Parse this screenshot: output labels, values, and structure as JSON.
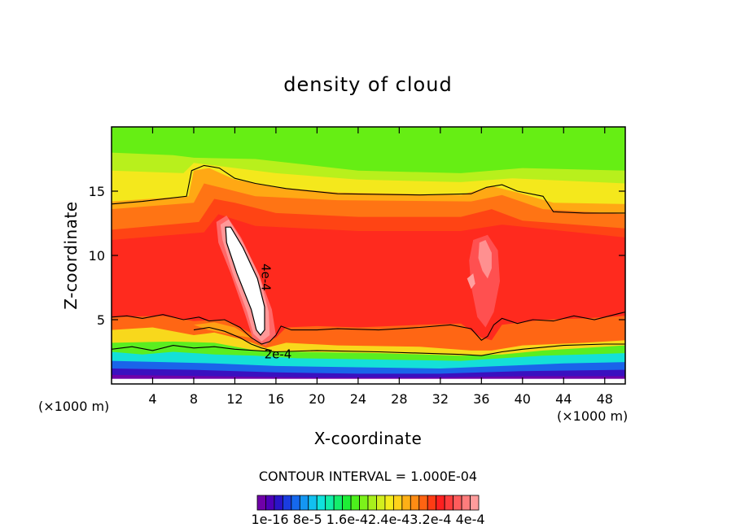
{
  "chart_data": {
    "type": "contour",
    "title": "density of cloud",
    "xlabel": "X-coordinate",
    "ylabel": "Z-coordinate",
    "x_unit": "(×1000 m)",
    "z_unit": "(×1000 m)",
    "xlim": [
      0,
      50
    ],
    "zlim": [
      0,
      20
    ],
    "x_ticks": [
      4,
      8,
      12,
      16,
      20,
      24,
      28,
      32,
      36,
      40,
      44,
      48
    ],
    "z_ticks": [
      5,
      10,
      15
    ],
    "contour_interval_text": "CONTOUR INTERVAL = 1.000E-04",
    "contour_labels": [
      {
        "text": "4e-4",
        "x": 14.6,
        "z": 8.3
      },
      {
        "text": "2e-4",
        "x": 16.2,
        "z": 2.0
      }
    ],
    "colorbar_labels": [
      "1e-16",
      "8e-5",
      "1.6e-4",
      "2.4e-4",
      "3.2e-4",
      "4e-4"
    ],
    "colorbar_label_text": "1e-16 8e-5 1.6e-42.4e-43.2e-4 4e-4",
    "colorbar_colors": [
      "#6f00a8",
      "#4e00b8",
      "#2a14c8",
      "#1a3ce0",
      "#1568ee",
      "#1496f2",
      "#12c0f0",
      "#10e2dc",
      "#12eea8",
      "#14ee6c",
      "#1eee36",
      "#4cf01c",
      "#7cf21a",
      "#a8f01c",
      "#d2ee1e",
      "#f4ec1c",
      "#ffd21a",
      "#ffb016",
      "#ff8c14",
      "#ff6412",
      "#ff3c14",
      "#ff2020",
      "#ff3c3c",
      "#ff5c5c",
      "#ff7c7c",
      "#ff9c9c"
    ]
  }
}
